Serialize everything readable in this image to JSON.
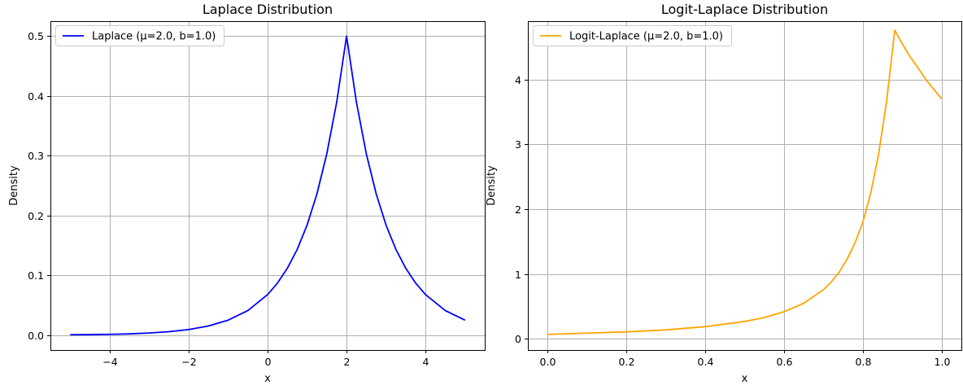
{
  "chart_data": [
    {
      "type": "line",
      "title": "Laplace Distribution",
      "xlabel": "x",
      "ylabel": "Density",
      "xlim": [
        -5.5,
        5.5
      ],
      "ylim": [
        -0.025,
        0.525
      ],
      "xticks": [
        -4,
        -2,
        0,
        2,
        4
      ],
      "xtick_labels": [
        "−4",
        "−2",
        "0",
        "2",
        "4"
      ],
      "yticks": [
        0.0,
        0.1,
        0.2,
        0.3,
        0.4,
        0.5
      ],
      "ytick_labels": [
        "0.0",
        "0.1",
        "0.2",
        "0.3",
        "0.4",
        "0.5"
      ],
      "grid": true,
      "legend_position": "top-left",
      "series": [
        {
          "name": "Laplace (μ=2.0, b=1.0)",
          "color": "#0000ff",
          "x": [
            -5.0,
            -4.5,
            -4.0,
            -3.5,
            -3.0,
            -2.5,
            -2.0,
            -1.5,
            -1.0,
            -0.5,
            0.0,
            0.25,
            0.5,
            0.75,
            1.0,
            1.25,
            1.5,
            1.75,
            2.0,
            2.25,
            2.5,
            2.75,
            3.0,
            3.25,
            3.5,
            3.75,
            4.0,
            4.5,
            5.0
          ],
          "y": [
            0.0005,
            0.0008,
            0.0012,
            0.002,
            0.0034,
            0.0056,
            0.0092,
            0.0151,
            0.0249,
            0.041,
            0.0677,
            0.0869,
            0.1116,
            0.1433,
            0.1839,
            0.2362,
            0.3033,
            0.3894,
            0.5,
            0.3894,
            0.3033,
            0.2362,
            0.1839,
            0.1433,
            0.1116,
            0.0869,
            0.0677,
            0.041,
            0.0249
          ]
        }
      ]
    },
    {
      "type": "line",
      "title": "Logit-Laplace Distribution",
      "xlabel": "x",
      "ylabel": "Density",
      "xlim": [
        -0.05,
        1.05
      ],
      "ylim": [
        -0.17,
        4.9
      ],
      "xticks": [
        0.0,
        0.2,
        0.4,
        0.6,
        0.8,
        1.0
      ],
      "xtick_labels": [
        "0.0",
        "0.2",
        "0.4",
        "0.6",
        "0.8",
        "1.0"
      ],
      "yticks": [
        0,
        1,
        2,
        3,
        4
      ],
      "ytick_labels": [
        "0",
        "1",
        "2",
        "3",
        "4"
      ],
      "grid": true,
      "legend_position": "top-left",
      "series": [
        {
          "name": "Logit-Laplace (μ=2.0, b=1.0)",
          "color": "#ffa500",
          "x": [
            0.0,
            0.1,
            0.2,
            0.3,
            0.4,
            0.5,
            0.55,
            0.6,
            0.65,
            0.7,
            0.72,
            0.74,
            0.76,
            0.78,
            0.8,
            0.82,
            0.84,
            0.86,
            0.881,
            0.9,
            0.92,
            0.94,
            0.96,
            0.98,
            1.0
          ],
          "y": [
            0.07,
            0.09,
            0.11,
            0.14,
            0.19,
            0.27,
            0.33,
            0.42,
            0.55,
            0.76,
            0.88,
            1.03,
            1.23,
            1.48,
            1.8,
            2.25,
            2.85,
            3.65,
            4.76,
            4.55,
            4.35,
            4.18,
            4.0,
            3.85,
            3.7
          ]
        }
      ]
    }
  ]
}
